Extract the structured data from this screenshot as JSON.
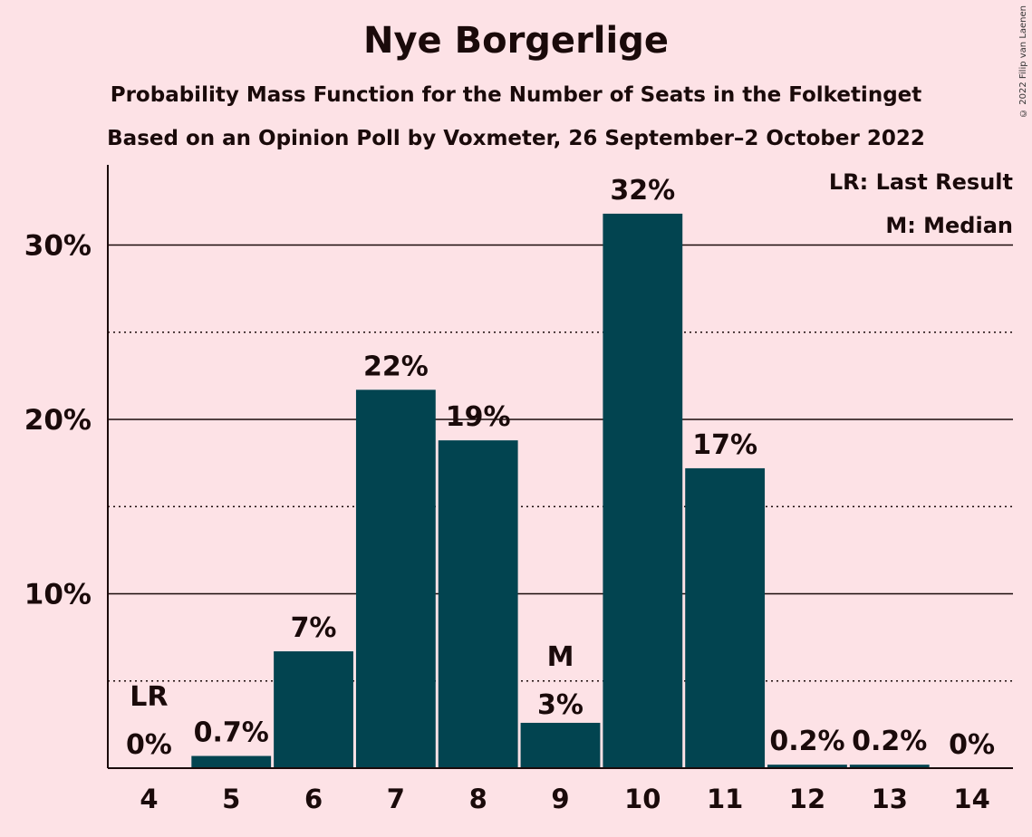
{
  "chart_data": {
    "type": "bar",
    "title": "Nye Borgerlige",
    "subtitle": "Probability Mass Function for the Number of Seats in the Folketinget",
    "subtitle2": "Based on an Opinion Poll by Voxmeter, 26 September–2 October 2022",
    "copyright": "© 2022 Filip van Laenen",
    "categories": [
      "4",
      "5",
      "6",
      "7",
      "8",
      "9",
      "10",
      "11",
      "12",
      "13",
      "14"
    ],
    "values": [
      0.0,
      0.7,
      6.7,
      21.7,
      18.8,
      2.6,
      31.8,
      17.2,
      0.2,
      0.2,
      0.0
    ],
    "value_labels": [
      "0%",
      "0.7%",
      "7%",
      "22%",
      "19%",
      "3%",
      "32%",
      "17%",
      "0.2%",
      "0.2%",
      "0%"
    ],
    "markers": {
      "4": "LR",
      "9": "M"
    },
    "ylim": [
      0,
      34.6
    ],
    "yticks": [
      10,
      20,
      30
    ],
    "ytick_labels": [
      "10%",
      "20%",
      "30%"
    ],
    "minor_gridlines": [
      5,
      15,
      25
    ],
    "grid": true,
    "legend": {
      "placement": "top-right",
      "items": [
        "LR: Last Result",
        "M: Median"
      ]
    },
    "colors": {
      "bar": "#024450",
      "background": "#fde2e6",
      "text": "#1a0a0a"
    }
  }
}
